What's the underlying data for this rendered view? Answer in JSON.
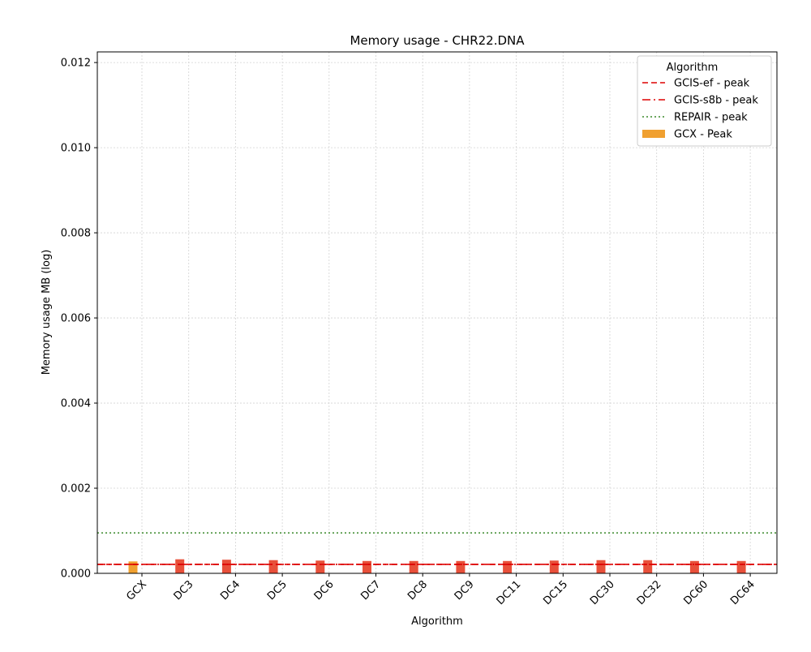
{
  "chart_data": {
    "type": "bar",
    "title": "Memory usage -  CHR22.DNA",
    "xlabel": "Algorithm",
    "ylabel": "Memory usage MB (log)",
    "ylim": [
      0,
      0.01225
    ],
    "yticks": [
      "0.000",
      "0.002",
      "0.004",
      "0.006",
      "0.008",
      "0.010",
      "0.012"
    ],
    "ytick_values": [
      0,
      0.002,
      0.004,
      0.006,
      0.008,
      0.01,
      0.012
    ],
    "grid": true,
    "legend_position": "top-right",
    "categories": [
      "GCX",
      "DC3",
      "DC4",
      "DC5",
      "DC6",
      "DC7",
      "DC8",
      "DC9",
      "DC11",
      "DC15",
      "DC30",
      "DC32",
      "DC60",
      "DC64"
    ],
    "values": [
      0.00028,
      0.00033,
      0.00032,
      0.00031,
      0.0003,
      0.00029,
      0.00029,
      0.00029,
      0.00029,
      0.0003,
      0.00031,
      0.00031,
      0.00029,
      0.00029
    ],
    "bar_colors": [
      "#f0a030",
      "#e8503a",
      "#e8503a",
      "#e8503a",
      "#e8503a",
      "#e8503a",
      "#e8503a",
      "#e8503a",
      "#e8503a",
      "#e8503a",
      "#e8503a",
      "#e8503a",
      "#e8503a",
      "#e8503a"
    ],
    "reference_lines": [
      {
        "name": "GCIS-ef  - peak",
        "value": 0.00021,
        "color": "#dd0000",
        "style": "dashed"
      },
      {
        "name": "GCIS-s8b  - peak",
        "value": 0.00021,
        "color": "#dd0000",
        "style": "dashdot"
      },
      {
        "name": "REPAIR  - peak",
        "value": 0.00095,
        "color": "#3a8a2a",
        "style": "dotted"
      }
    ],
    "legend": {
      "title": "Algorithm",
      "bar_entry": "GCX - Peak",
      "bar_color": "#f0a030"
    }
  }
}
